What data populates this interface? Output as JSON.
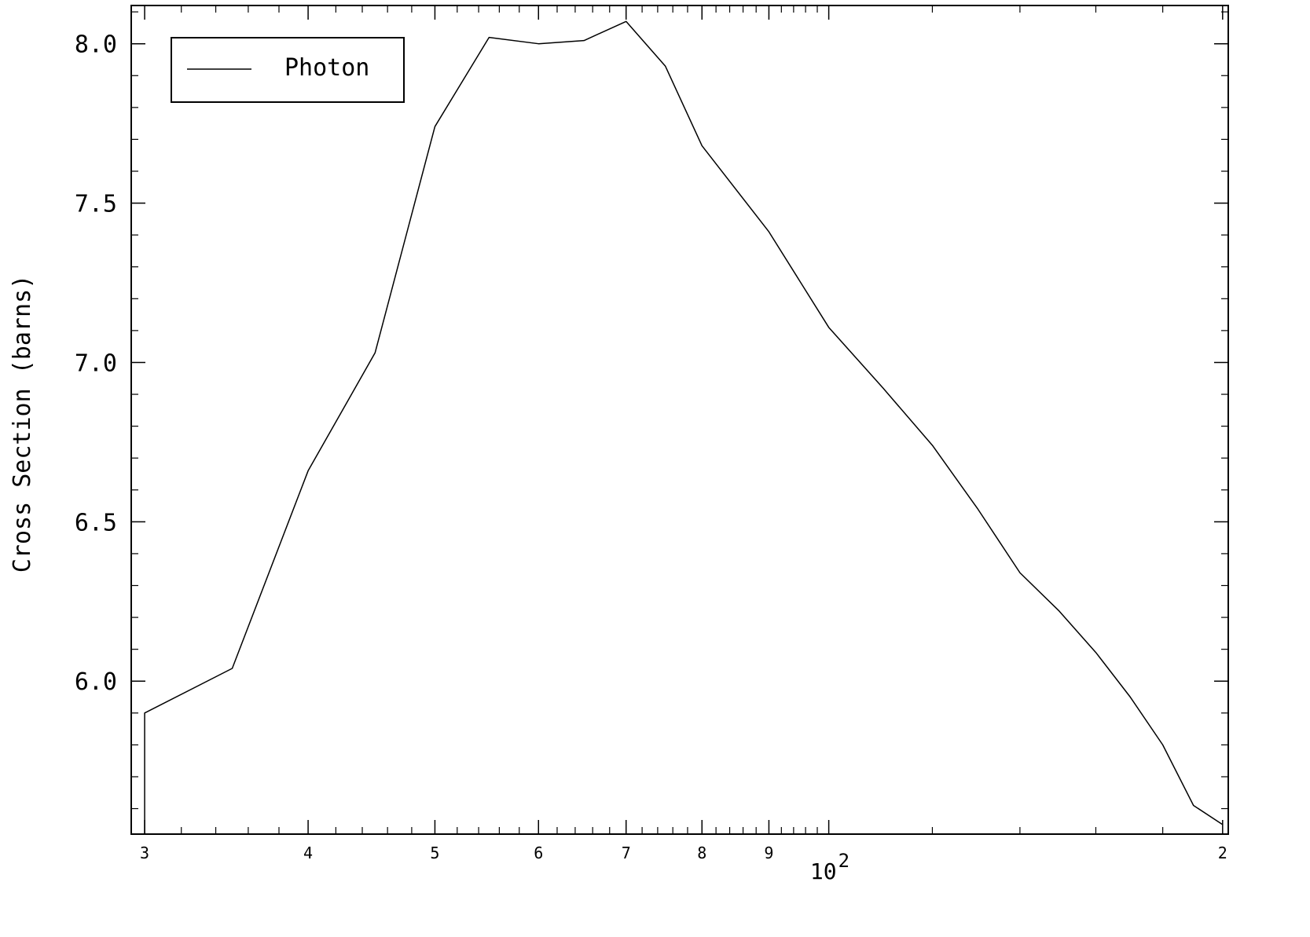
{
  "chart_data": {
    "type": "line",
    "xscale": "log",
    "yscale": "linear",
    "xlim": [
      29.3,
      202
    ],
    "ylim": [
      5.52,
      8.12
    ],
    "xlabel": "",
    "ylabel": "Cross Section (barns)",
    "grid": false,
    "legend_position": "top-left",
    "y_ticks": [
      {
        "value": 6.0,
        "label": "6.0"
      },
      {
        "value": 6.5,
        "label": "6.5"
      },
      {
        "value": 7.0,
        "label": "7.0"
      },
      {
        "value": 7.5,
        "label": "7.5"
      },
      {
        "value": 8.0,
        "label": "8.0"
      }
    ],
    "x_tick_labels": [
      {
        "value": 30,
        "label": "3"
      },
      {
        "value": 40,
        "label": "4"
      },
      {
        "value": 50,
        "label": "5"
      },
      {
        "value": 60,
        "label": "6"
      },
      {
        "value": 70,
        "label": "7"
      },
      {
        "value": 80,
        "label": "8"
      },
      {
        "value": 90,
        "label": "9"
      },
      {
        "value": 200,
        "label": "2"
      }
    ],
    "x_decade_label": {
      "value": 100,
      "base": "10",
      "exponent": "2"
    },
    "x_major_ticks": [
      30,
      40,
      50,
      60,
      70,
      80,
      90,
      100,
      200
    ],
    "x_minor_ticks": [
      32,
      34,
      36,
      38,
      42,
      44,
      46,
      48,
      52,
      54,
      56,
      58,
      62,
      64,
      66,
      68,
      72,
      74,
      76,
      78,
      82,
      84,
      86,
      88,
      92,
      94,
      96,
      98,
      120,
      140,
      160,
      180
    ],
    "y_minor_step": 0.1,
    "series": [
      {
        "name": "Photon",
        "color": "#000000",
        "x": [
          30,
          30,
          35,
          40,
          45,
          50,
          55,
          60,
          65,
          70,
          75,
          80,
          90,
          100,
          110,
          120,
          130,
          140,
          150,
          160,
          170,
          180,
          190,
          200
        ],
        "y": [
          5.52,
          5.9,
          6.04,
          6.66,
          7.03,
          7.74,
          8.02,
          8.0,
          8.01,
          8.07,
          7.93,
          7.68,
          7.41,
          7.11,
          6.92,
          6.74,
          6.54,
          6.34,
          6.22,
          6.09,
          5.95,
          5.8,
          5.61,
          5.55
        ]
      }
    ]
  }
}
